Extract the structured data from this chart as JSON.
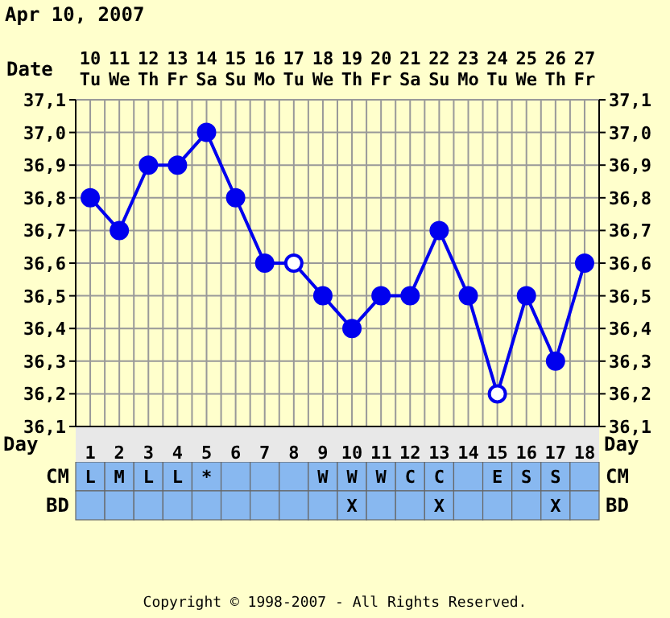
{
  "chart_data": [
    {
      "type": "line",
      "title": "Apr 10, 2007",
      "xlabel": "Day",
      "x2label": "Date",
      "x": [
        1,
        2,
        3,
        4,
        5,
        6,
        7,
        8,
        9,
        10,
        11,
        12,
        13,
        14,
        15,
        16,
        17,
        18
      ],
      "xlim": [
        0.5,
        18.5
      ],
      "xticks": [
        {
          "value": 0.5,
          "label": null
        },
        1,
        {
          "value": 1.5,
          "label": null
        },
        2,
        {
          "value": 2.5,
          "label": null
        },
        3,
        {
          "value": 3.5,
          "label": null
        },
        4,
        {
          "value": 4.5,
          "label": null
        },
        5,
        {
          "value": 5.5,
          "label": null
        },
        6,
        {
          "value": 6.5,
          "label": null
        },
        7,
        {
          "value": 7.5,
          "label": null
        },
        8,
        {
          "value": 8.5,
          "label": null
        },
        9,
        {
          "value": 9.5,
          "label": null
        },
        10,
        {
          "value": 10.5,
          "label": null
        },
        11,
        {
          "value": 11.5,
          "label": null
        },
        12,
        {
          "value": 12.5,
          "label": null
        },
        13,
        {
          "value": 13.5,
          "label": null
        },
        14,
        {
          "value": 14.5,
          "label": null
        },
        15,
        {
          "value": 15.5,
          "label": null
        },
        16,
        {
          "value": 16.5,
          "label": null
        },
        17,
        {
          "value": 17.5,
          "label": null
        },
        18,
        {
          "value": 18.5,
          "label": null
        }
      ],
      "x2lim": [
        "2007-04-09T12:00",
        "2007-04-27T12:00"
      ],
      "x2ticks": [
        {
          "value": "2007-04-10",
          "label": "10\nTu"
        },
        {
          "value": "2007-04-11",
          "label": "11\nWe"
        },
        {
          "value": "2007-04-12",
          "label": "12\nTh"
        },
        {
          "value": "2007-04-13",
          "label": "13\nFr"
        },
        {
          "value": "2007-04-14",
          "label": "14\nSa"
        },
        {
          "value": "2007-04-15",
          "label": "15\nSu"
        },
        {
          "value": "2007-04-16",
          "label": "16\nMo"
        },
        {
          "value": "2007-04-17",
          "label": "17\nTu"
        },
        {
          "value": "2007-04-18",
          "label": "18\nWe"
        },
        {
          "value": "2007-04-19",
          "label": "19\nTh"
        },
        {
          "value": "2007-04-20",
          "label": "20\nFr"
        },
        {
          "value": "2007-04-21",
          "label": "21\nSa"
        },
        {
          "value": "2007-04-22",
          "label": "22\nSu"
        },
        {
          "value": "2007-04-23",
          "label": "23\nMo"
        },
        {
          "value": "2007-04-24",
          "label": "24\nTu"
        },
        {
          "value": "2007-04-25",
          "label": "25\nWe"
        },
        {
          "value": "2007-04-26",
          "label": "26\nTh"
        },
        {
          "value": "2007-04-27",
          "label": "27\nFr"
        }
      ],
      "ylim": [
        36.1,
        37.1
      ],
      "yticks": [
        {
          "value": 36.1,
          "label": "36,1"
        },
        {
          "value": 36.2,
          "label": "36,2"
        },
        {
          "value": 36.3,
          "label": "36,3"
        },
        {
          "value": 36.4,
          "label": "36,4"
        },
        {
          "value": 36.5,
          "label": "36,5"
        },
        {
          "value": 36.6,
          "label": "36,6"
        },
        {
          "value": 36.7,
          "label": "36,7"
        },
        {
          "value": 36.8,
          "label": "36,8"
        },
        {
          "value": 36.9,
          "label": "36,9"
        },
        {
          "value": 37.0,
          "label": "37,0"
        },
        {
          "value": 37.1,
          "label": "37,1"
        }
      ],
      "y2lim": [
        36.1,
        37.1
      ],
      "y2ticks": [
        {
          "value": 36.1,
          "label": "36,1"
        },
        {
          "value": 36.2,
          "label": "36,2"
        },
        {
          "value": 36.3,
          "label": "36,3"
        },
        {
          "value": 36.4,
          "label": "36,4"
        },
        {
          "value": 36.5,
          "label": "36,5"
        },
        {
          "value": 36.6,
          "label": "36,6"
        },
        {
          "value": 36.7,
          "label": "36,7"
        },
        {
          "value": 36.8,
          "label": "36,8"
        },
        {
          "value": 36.9,
          "label": "36,9"
        },
        {
          "value": 37.0,
          "label": "37,0"
        },
        {
          "value": 37.1,
          "label": "37,1"
        }
      ],
      "grid": true,
      "marker": "circle",
      "series": [
        {
          "type": "line",
          "color": "#0000ee",
          "values": [
            36.8,
            36.7,
            36.9,
            36.9,
            37.0,
            36.8,
            36.6,
            36.6,
            36.5,
            36.4,
            36.5,
            36.5,
            36.7,
            36.5,
            36.2,
            36.5,
            36.3,
            36.6
          ]
        },
        {
          "type": "scatter",
          "color": "#ffffff",
          "x": [
            8,
            15
          ],
          "values": [
            36.6,
            36.2
          ]
        }
      ],
      "annotations": [
        "Copyright © 1998-2007 - All Rights Reserved."
      ]
    },
    {
      "type": "heatmap",
      "categories": [
        null,
        null,
        null,
        null,
        null,
        null,
        null,
        null,
        null,
        null,
        null,
        null,
        null,
        null,
        null,
        null,
        null,
        null
      ],
      "y_categories": [
        "CM",
        "BD"
      ],
      "y2_categories": [
        "CM",
        "BD"
      ],
      "cells": [
        [
          null,
          null,
          null,
          null,
          null,
          null,
          null,
          null,
          null,
          null,
          null,
          null,
          null,
          null,
          null,
          null,
          null,
          null
        ],
        [
          null,
          null,
          null,
          null,
          null,
          null,
          null,
          null,
          null,
          null,
          null,
          null,
          null,
          null,
          null,
          null,
          null,
          null
        ]
      ],
      "cell_labels": [
        [
          "L",
          "M",
          "L",
          "L",
          "*",
          null,
          null,
          null,
          "W",
          "W",
          "W",
          "C",
          "C",
          null,
          "E",
          "S",
          "S",
          null
        ],
        [
          null,
          null,
          null,
          null,
          null,
          null,
          null,
          null,
          null,
          "X",
          null,
          null,
          "X",
          null,
          null,
          null,
          "X",
          null
        ]
      ]
    }
  ]
}
